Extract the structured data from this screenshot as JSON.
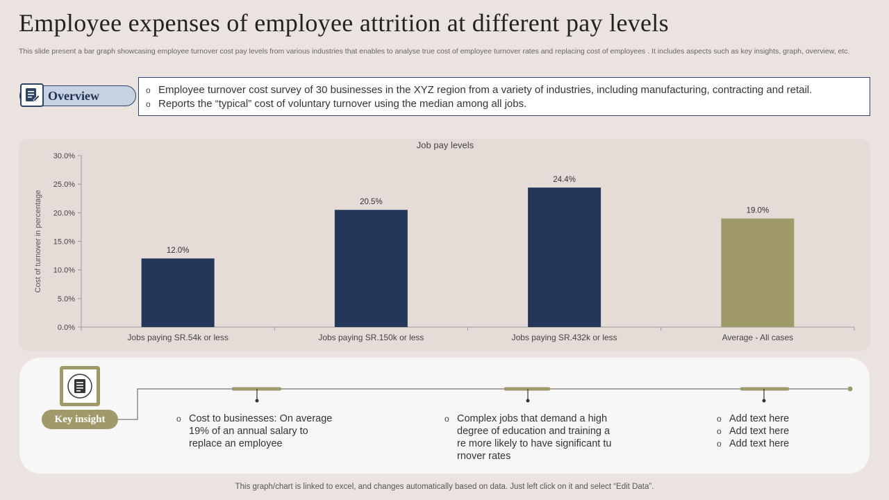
{
  "title": "Employee expenses of employee attrition at different pay levels",
  "subtitle": "This slide present a bar graph showcasing employee turnover cost pay levels from various industries that enables to analyse true cost of employee turnover rates and replacing cost of employees . It includes aspects such as key insights, graph, overview, etc.",
  "overview": {
    "label": "Overview",
    "bullet_symbol": "o",
    "items": [
      "Employee turnover  cost survey  of 30 businesses in the XYZ  region from a variety  of industries, including manufacturing,  contracting and retail.",
      "Reports the “typical” cost of voluntary  turnover  using the median among all jobs."
    ]
  },
  "chart_data": {
    "type": "bar",
    "title": "Job pay levels",
    "xlabel": "",
    "ylabel": "Cost of turnover in percentage",
    "categories": [
      "Jobs paying SR.54k or less",
      "Jobs paying SR.150k or less",
      "Jobs paying SR.432k or less",
      "Average - All cases"
    ],
    "values": [
      12.0,
      20.5,
      24.4,
      19.0
    ],
    "data_labels": [
      "12.0%",
      "20.5%",
      "24.4%",
      "19.0%"
    ],
    "bar_colors": [
      "#243759",
      "#243759",
      "#243759",
      "#a09a6b"
    ],
    "ylim": [
      0,
      30
    ],
    "yticks": [
      0,
      5,
      10,
      15,
      20,
      25,
      30
    ],
    "ytick_labels": [
      "0.0%",
      "5.0%",
      "10.0%",
      "15.0%",
      "20.0%",
      "25.0%",
      "30.0%"
    ],
    "grid": false,
    "legend": "none"
  },
  "key_insight": {
    "label": "Key insight",
    "bullet_symbol": "o",
    "items": [
      {
        "lines": [
          "Cost to businesses: On average 19% of an annual salary to replace an employee"
        ]
      },
      {
        "lines": [
          "Complex jobs that demand a high degree of education and training a re more likely to have significant tu rnover rates"
        ]
      },
      {
        "lines": [
          "Add text here",
          "Add text here",
          "Add text here"
        ]
      }
    ]
  },
  "footer": "This graph/chart is linked to excel,  and changes automatically based on data. Just left click on it and select “Edit Data”.",
  "colors": {
    "background": "#ebe3df",
    "navy": "#243759",
    "olive": "#a09a6b",
    "overview_fill": "#c6d1e3"
  }
}
